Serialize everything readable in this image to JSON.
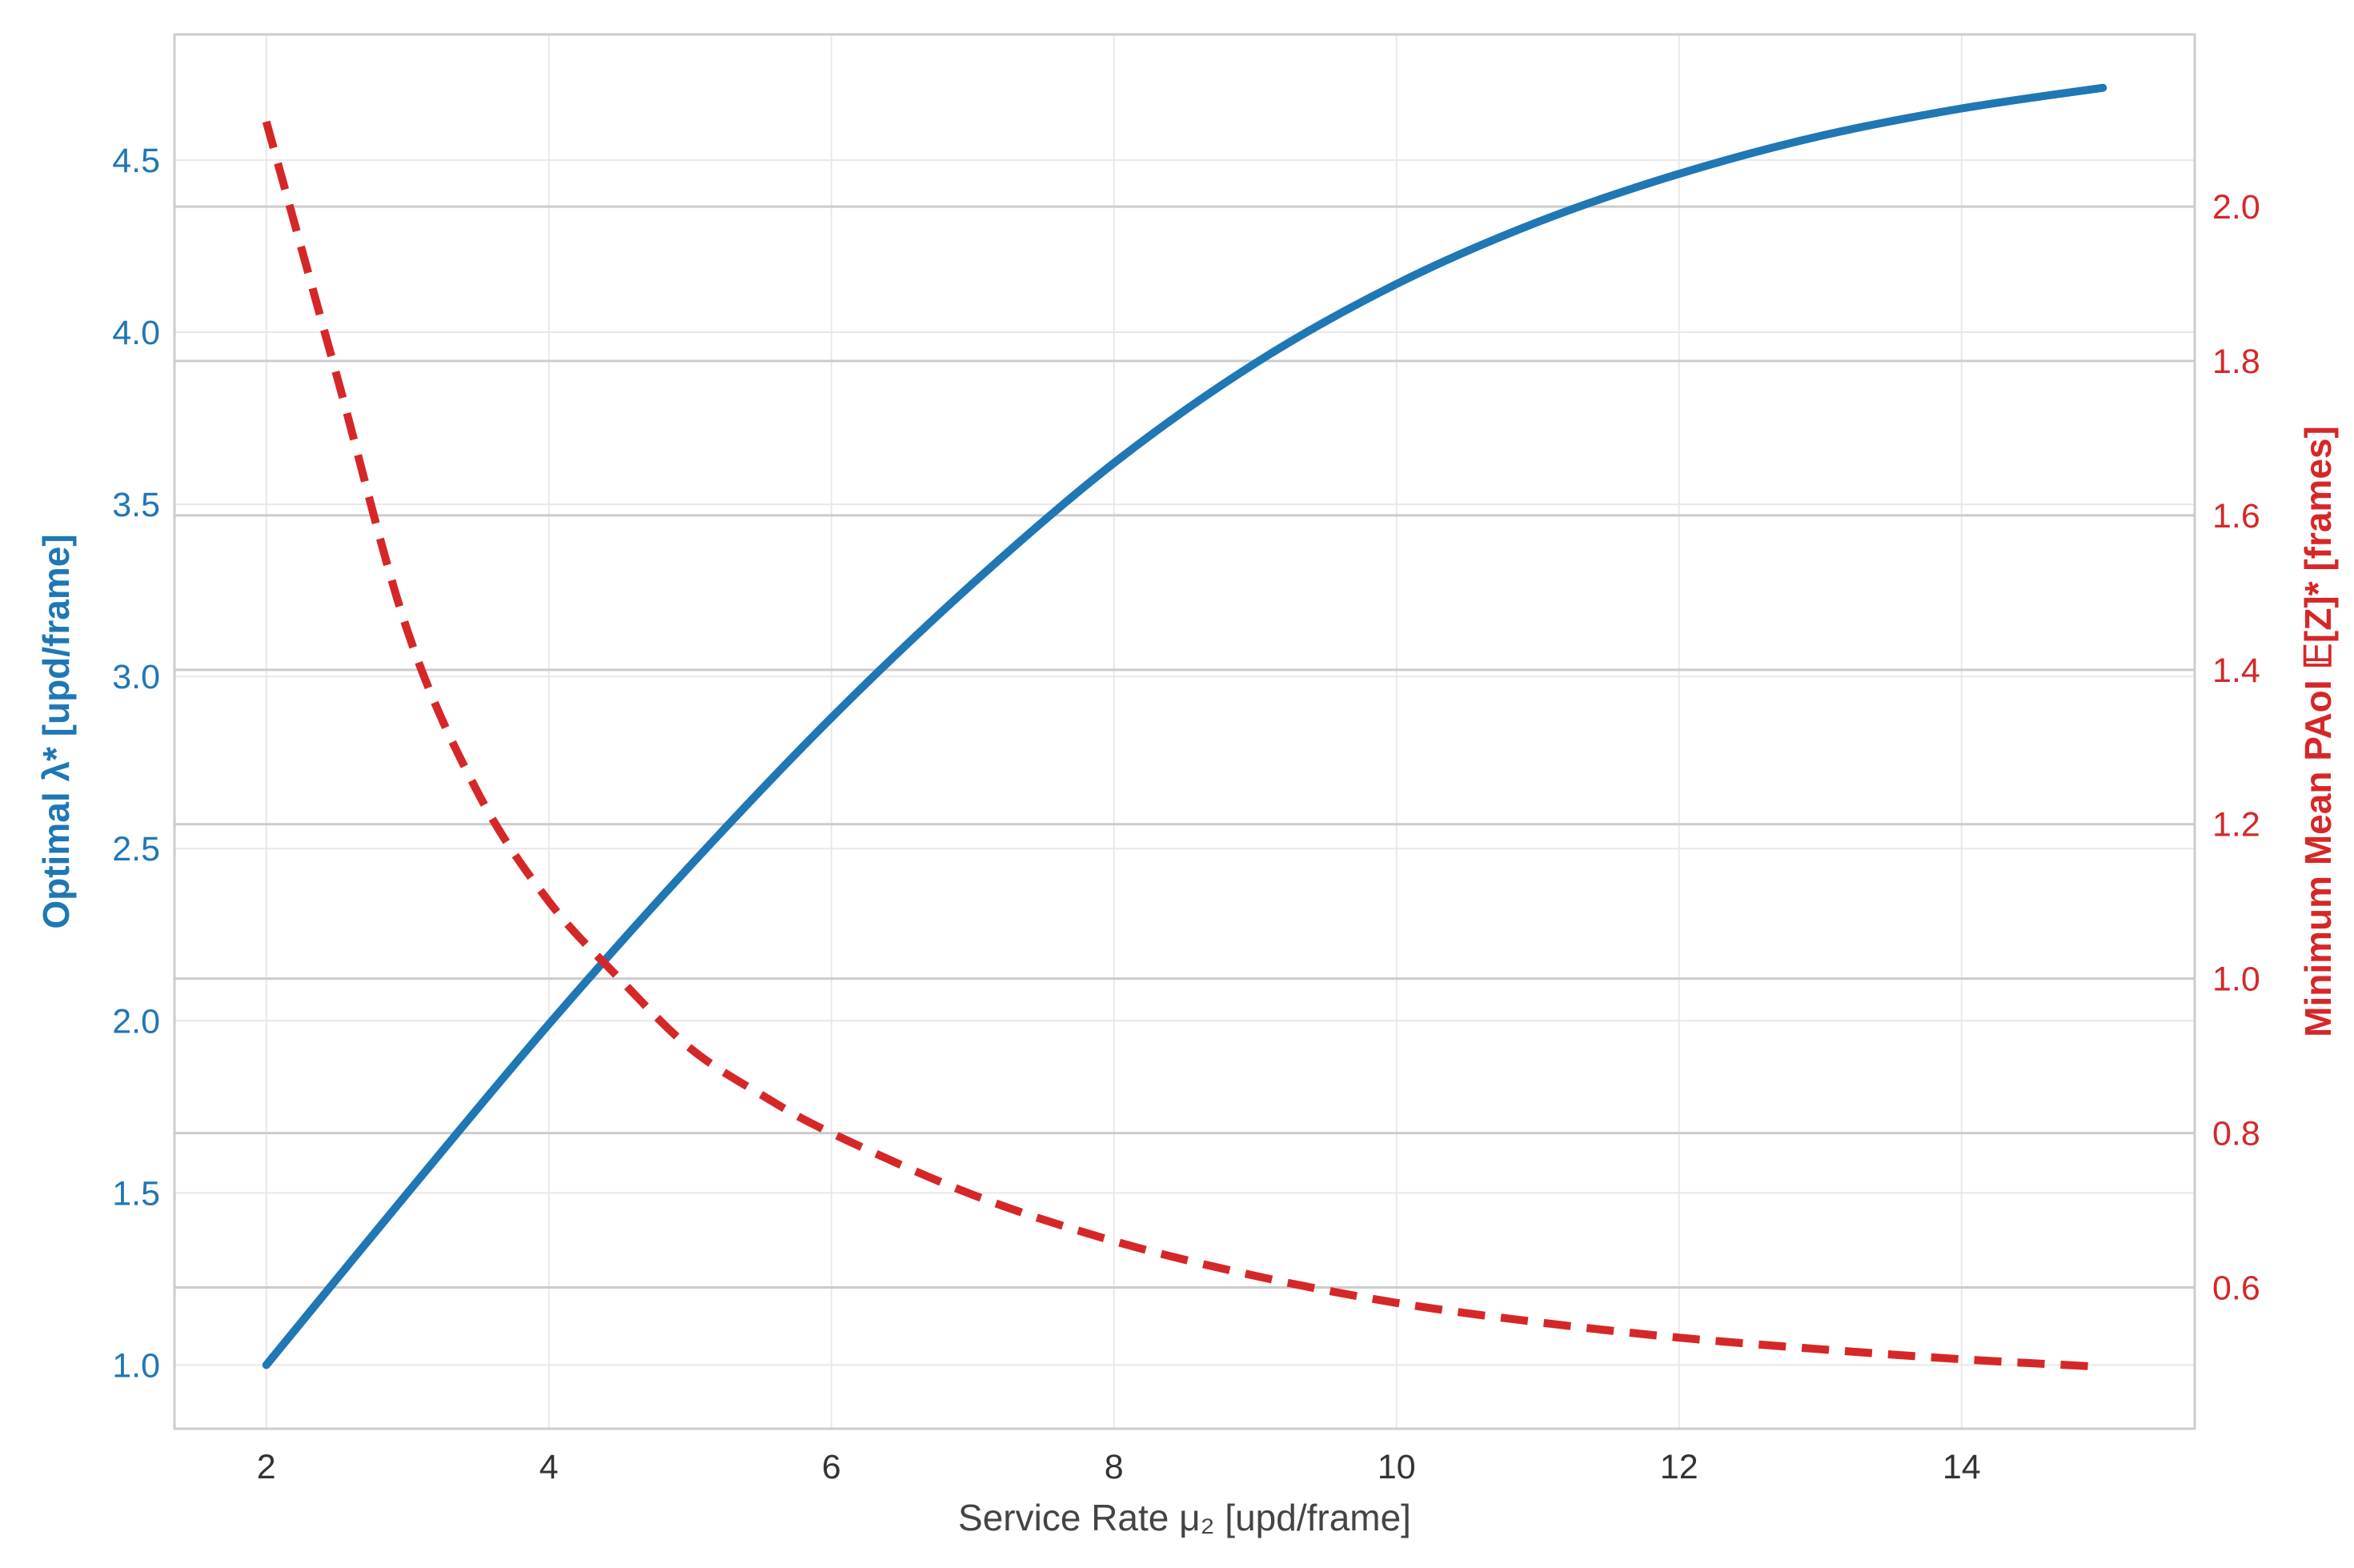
{
  "chart_data": {
    "type": "line",
    "xlabel": "Service Rate μ₂ [upd/frame]",
    "ylabel_left": "Optimal λ* [upd/frame]",
    "ylabel_right": "Minimum Mean PAoI 𝔼[Z]* [frames]",
    "xlim": [
      1.35,
      15.65
    ],
    "ylim_left": [
      0.815,
      4.865
    ],
    "ylim_right": [
      0.417,
      2.223
    ],
    "x_ticks": [
      2,
      4,
      6,
      8,
      10,
      12,
      14
    ],
    "y_ticks_left": [
      1.0,
      1.5,
      2.0,
      2.5,
      3.0,
      3.5,
      4.0,
      4.5
    ],
    "y_ticks_right": [
      0.6,
      0.8,
      1.0,
      1.2,
      1.4,
      1.6,
      1.8,
      2.0
    ],
    "x_tick_labels": [
      "2",
      "4",
      "6",
      "8",
      "10",
      "12",
      "14"
    ],
    "y_tick_labels_left": [
      "1.0",
      "1.5",
      "2.0",
      "2.5",
      "3.0",
      "3.5",
      "4.0",
      "4.5"
    ],
    "y_tick_labels_right": [
      "0.6",
      "0.8",
      "1.0",
      "1.2",
      "1.4",
      "1.6",
      "1.8",
      "2.0"
    ],
    "grid": true,
    "series": [
      {
        "axis": "left",
        "color": "#1f77b4",
        "style": "solid",
        "x": [
          2,
          3,
          4,
          5,
          6,
          7,
          8,
          9,
          10,
          11,
          12,
          13,
          14,
          15
        ],
        "y": [
          1.0,
          1.5,
          1.99,
          2.45,
          2.88,
          3.27,
          3.62,
          3.91,
          4.14,
          4.32,
          4.46,
          4.57,
          4.65,
          4.71
        ]
      },
      {
        "axis": "right",
        "color": "#d62728",
        "style": "dashed",
        "x": [
          2,
          2.5,
          3,
          3.5,
          4,
          4.5,
          5,
          5.5,
          6,
          7,
          8,
          9,
          10,
          11,
          12,
          13,
          14,
          15
        ],
        "y": [
          2.11,
          1.78,
          1.45,
          1.24,
          1.1,
          1.0,
          0.91,
          0.85,
          0.8,
          0.72,
          0.66,
          0.615,
          0.58,
          0.555,
          0.535,
          0.52,
          0.507,
          0.497
        ]
      }
    ]
  },
  "colors": {
    "left_axis": "#1f77b4",
    "right_axis": "#d62728",
    "frame": "#cccccc",
    "grid": "#e8e8e8",
    "right_grid": "#cccccc",
    "tick_text": "#333333"
  }
}
